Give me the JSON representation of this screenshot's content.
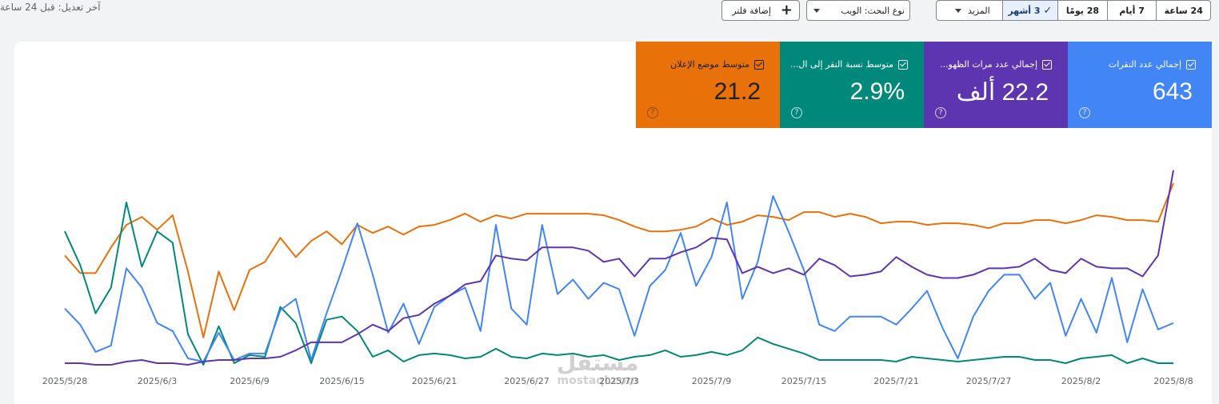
{
  "header": {
    "last_updated": "آخر تعديل: قبل 24 ساعة",
    "add_filter": "إضافة فلتر",
    "search_type": "نوع البحث: الويب"
  },
  "date_range": {
    "options": [
      "24 ساعة",
      "7 أيام",
      "28 يومًا",
      "3 أشهر"
    ],
    "selected": "3 أشهر",
    "more": "المزيد"
  },
  "metrics": [
    {
      "label": "إجمالي عدد النقرات",
      "value": "643",
      "color": "#4285f4"
    },
    {
      "label": "إجمالي عدد مرات الظهو...",
      "value": "22.2 ألف",
      "color": "#5e35b1"
    },
    {
      "label": "متوسط نسبة النقر إلى ال...",
      "value": "2.9%",
      "color": "#00897b"
    },
    {
      "label": "متوسط موضع الإعلان",
      "value": "21.2",
      "color": "#e8710a"
    }
  ],
  "chart_data": {
    "type": "line",
    "x_labels": [
      "2025/5/28",
      "2025/6/3",
      "2025/6/9",
      "2025/6/15",
      "2025/6/21",
      "2025/6/27",
      "2025/7/3",
      "2025/7/9",
      "2025/7/15",
      "2025/7/21",
      "2025/7/27",
      "2025/8/2",
      "2025/8/8"
    ],
    "grid": false,
    "series": [
      {
        "name": "إجمالي عدد النقرات",
        "color": "#4285f4",
        "values": [
          0.34,
          0.24,
          0.07,
          0.11,
          0.59,
          0.47,
          0.25,
          0.2,
          0.03,
          0.01,
          0.19,
          0.02,
          0.06,
          0.06,
          0.33,
          0.4,
          0.02,
          0.31,
          0.58,
          0.87,
          0.55,
          0.19,
          0.37,
          0.12,
          0.35,
          0.42,
          0.47,
          0.2,
          0.86,
          0.34,
          0.24,
          0.86,
          0.43,
          0.52,
          0.4,
          0.5,
          0.46,
          0.17,
          0.48,
          0.58,
          0.81,
          0.48,
          0.66,
          1.0,
          0.4,
          0.63,
          1.04,
          0.82,
          0.58,
          0.24,
          0.2,
          0.29,
          0.29,
          0.29,
          0.24,
          0.34,
          0.45,
          0.22,
          0.03,
          0.29,
          0.45,
          0.55,
          0.55,
          0.4,
          0.5,
          0.17,
          0.4,
          0.19,
          0.53,
          0.13,
          0.46,
          0.21,
          0.25
        ]
      },
      {
        "name": "إجمالي عدد مرات الظهو...",
        "color": "#5e35b1",
        "values": [
          0.0,
          0.0,
          -0.01,
          -0.01,
          0.01,
          0.02,
          0.0,
          0.0,
          -0.01,
          0.01,
          0.02,
          0.02,
          0.03,
          0.03,
          0.04,
          0.08,
          0.13,
          0.13,
          0.13,
          0.18,
          0.24,
          0.2,
          0.28,
          0.3,
          0.37,
          0.42,
          0.49,
          0.51,
          0.67,
          0.65,
          0.64,
          0.72,
          0.72,
          0.72,
          0.7,
          0.63,
          0.65,
          0.54,
          0.65,
          0.65,
          0.69,
          0.72,
          0.78,
          0.77,
          0.56,
          0.6,
          0.56,
          0.59,
          0.55,
          0.65,
          0.61,
          0.54,
          0.55,
          0.57,
          0.66,
          0.6,
          0.55,
          0.53,
          0.53,
          0.55,
          0.59,
          0.59,
          0.6,
          0.65,
          0.58,
          0.56,
          0.65,
          0.6,
          0.59,
          0.59,
          0.54,
          0.67,
          1.2
        ]
      },
      {
        "name": "متوسط نسبة النقر إلى ال...",
        "color": "#00897b",
        "values": [
          0.82,
          0.61,
          0.31,
          0.47,
          1.0,
          0.6,
          0.82,
          0.75,
          0.18,
          -0.01,
          0.23,
          0.0,
          0.05,
          0.04,
          0.35,
          0.25,
          0.0,
          0.27,
          0.29,
          0.2,
          0.04,
          0.08,
          0.01,
          0.05,
          0.06,
          0.05,
          0.03,
          0.04,
          0.09,
          0.04,
          0.03,
          0.06,
          0.05,
          0.06,
          0.04,
          0.05,
          0.02,
          0.04,
          0.05,
          0.08,
          0.04,
          0.05,
          0.07,
          0.05,
          0.08,
          0.16,
          0.12,
          0.09,
          0.06,
          0.02,
          0.02,
          0.02,
          0.02,
          0.02,
          0.01,
          0.04,
          0.03,
          0.02,
          0.01,
          0.02,
          0.03,
          0.04,
          0.04,
          0.02,
          0.02,
          0.0,
          0.03,
          0.04,
          0.05,
          0.0,
          0.03,
          0.0,
          0.0
        ]
      },
      {
        "name": "متوسط موضع الإعلان",
        "color": "#e8710a",
        "values": [
          0.67,
          0.56,
          0.56,
          0.72,
          0.86,
          0.91,
          0.83,
          0.92,
          0.57,
          0.16,
          0.57,
          0.33,
          0.58,
          0.63,
          0.78,
          0.66,
          0.76,
          0.82,
          0.74,
          0.86,
          0.81,
          0.85,
          0.8,
          0.85,
          0.86,
          0.89,
          0.93,
          0.88,
          0.92,
          0.9,
          0.93,
          0.93,
          0.93,
          0.93,
          0.93,
          0.92,
          0.89,
          0.85,
          0.82,
          0.82,
          0.83,
          0.85,
          0.9,
          0.86,
          0.88,
          0.92,
          0.91,
          0.89,
          0.94,
          0.94,
          0.91,
          0.93,
          0.91,
          0.87,
          0.88,
          0.88,
          0.86,
          0.87,
          0.87,
          0.86,
          0.84,
          0.87,
          0.87,
          0.89,
          0.89,
          0.87,
          0.89,
          0.92,
          0.91,
          0.89,
          0.89,
          0.88,
          1.12
        ]
      }
    ]
  },
  "watermark": {
    "arabic": "مستقل",
    "latin": "mostaql.com"
  }
}
